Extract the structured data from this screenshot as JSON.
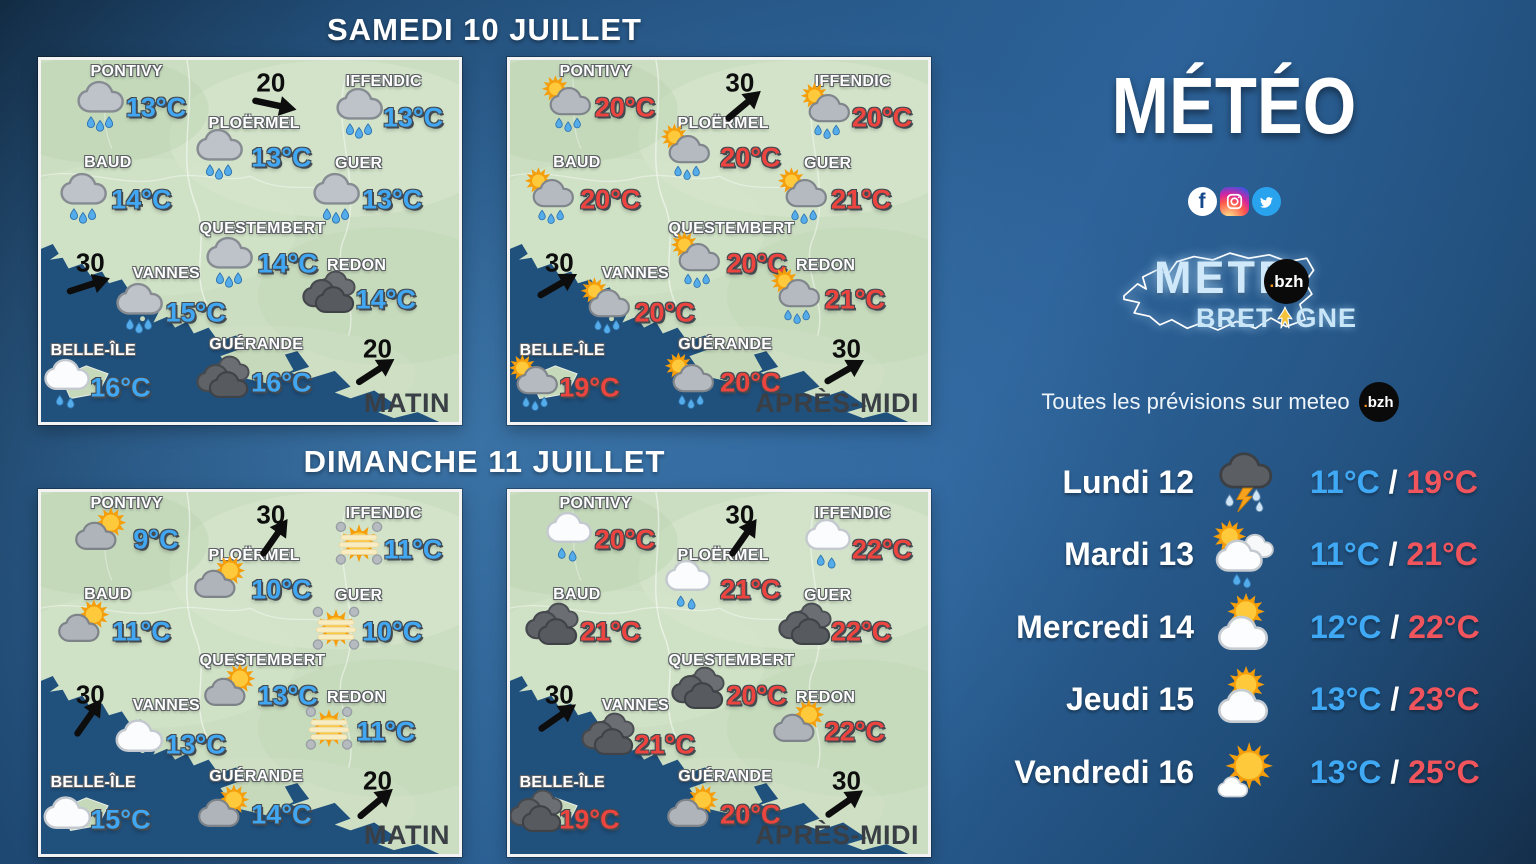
{
  "titles": {
    "saturday": "SAMEDI 10 JUILLET",
    "sunday": "DIMANCHE 11 JUILLET"
  },
  "panels": [
    {
      "name": "saturday-morning",
      "period": "MATIN",
      "temp_color": "#41A7F2",
      "winds": [
        {
          "slot": "top",
          "speed": "20",
          "angle": 12
        },
        {
          "slot": "left",
          "speed": "30",
          "angle": -18
        },
        {
          "slot": "bottom",
          "speed": "20",
          "angle": -33
        }
      ],
      "cities": [
        {
          "name": "PONTIVY",
          "icon": "rain",
          "temp": "13°C"
        },
        {
          "name": "IFFENDIC",
          "icon": "rain",
          "temp": "13°C"
        },
        {
          "name": "PLOËRMEL",
          "icon": "rain",
          "temp": "13°C"
        },
        {
          "name": "BAUD",
          "icon": "rain",
          "temp": "14°C"
        },
        {
          "name": "GUER",
          "icon": "rain",
          "temp": "13°C"
        },
        {
          "name": "QUESTEMBERT",
          "icon": "rain",
          "temp": "14°C"
        },
        {
          "name": "VANNES",
          "icon": "rain",
          "temp": "15°C"
        },
        {
          "name": "REDON",
          "icon": "darkclouds",
          "temp": "14°C"
        },
        {
          "name": "BELLE-ÎLE",
          "icon": "whitecloudrain",
          "temp": "16°C"
        },
        {
          "name": "GUÉRANDE",
          "icon": "darkclouds",
          "temp": "16°C"
        }
      ]
    },
    {
      "name": "saturday-afternoon",
      "period": "APRÈS-MIDI",
      "temp_color": "#EC4540",
      "winds": [
        {
          "slot": "top",
          "speed": "30",
          "angle": -40
        },
        {
          "slot": "left",
          "speed": "30",
          "angle": -30
        },
        {
          "slot": "bottom",
          "speed": "30",
          "angle": -30
        }
      ],
      "cities": [
        {
          "name": "PONTIVY",
          "icon": "sunrain",
          "temp": "20°C"
        },
        {
          "name": "IFFENDIC",
          "icon": "sunrain",
          "temp": "20°C"
        },
        {
          "name": "PLOËRMEL",
          "icon": "sunrain",
          "temp": "20°C"
        },
        {
          "name": "BAUD",
          "icon": "sunrain",
          "temp": "20°C"
        },
        {
          "name": "GUER",
          "icon": "sunrain",
          "temp": "21°C"
        },
        {
          "name": "QUESTEMBERT",
          "icon": "sunrain",
          "temp": "20°C"
        },
        {
          "name": "VANNES",
          "icon": "sunrain",
          "temp": "20°C"
        },
        {
          "name": "REDON",
          "icon": "sunrain",
          "temp": "21°C"
        },
        {
          "name": "BELLE-ÎLE",
          "icon": "sunrain",
          "temp": "19°C"
        },
        {
          "name": "GUÉRANDE",
          "icon": "sunrain",
          "temp": "20°C"
        }
      ]
    },
    {
      "name": "sunday-morning",
      "period": "MATIN",
      "temp_color": "#41A7F2",
      "winds": [
        {
          "slot": "top",
          "speed": "30",
          "angle": -55
        },
        {
          "slot": "left",
          "speed": "30",
          "angle": -55
        },
        {
          "slot": "bottom",
          "speed": "20",
          "angle": -40
        }
      ],
      "cities": [
        {
          "name": "PONTIVY",
          "icon": "suncloud",
          "temp": "9°C"
        },
        {
          "name": "IFFENDIC",
          "icon": "sunveil",
          "temp": "11°C"
        },
        {
          "name": "PLOËRMEL",
          "icon": "suncloud",
          "temp": "10°C"
        },
        {
          "name": "BAUD",
          "icon": "suncloud",
          "temp": "11°C"
        },
        {
          "name": "GUER",
          "icon": "sunveil",
          "temp": "10°C"
        },
        {
          "name": "QUESTEMBERT",
          "icon": "suncloud",
          "temp": "13°C"
        },
        {
          "name": "VANNES",
          "icon": "whitecloud",
          "temp": "13°C"
        },
        {
          "name": "REDON",
          "icon": "sunveil",
          "temp": "11°C"
        },
        {
          "name": "BELLE-ÎLE",
          "icon": "whitecloud",
          "temp": "15°C"
        },
        {
          "name": "GUÉRANDE",
          "icon": "suncloud",
          "temp": "14°C"
        }
      ]
    },
    {
      "name": "sunday-afternoon",
      "period": "APRÈS-MIDI",
      "temp_color": "#EC4540",
      "winds": [
        {
          "slot": "top",
          "speed": "30",
          "angle": -55
        },
        {
          "slot": "left",
          "speed": "30",
          "angle": -35
        },
        {
          "slot": "bottom",
          "speed": "30",
          "angle": -35
        }
      ],
      "cities": [
        {
          "name": "PONTIVY",
          "icon": "whitecloudrain",
          "temp": "20°C"
        },
        {
          "name": "IFFENDIC",
          "icon": "whitecloudrain",
          "temp": "22°C"
        },
        {
          "name": "PLOËRMEL",
          "icon": "whitecloudrain",
          "temp": "21°C"
        },
        {
          "name": "BAUD",
          "icon": "darkclouds",
          "temp": "21°C"
        },
        {
          "name": "GUER",
          "icon": "darkclouds",
          "temp": "22°C"
        },
        {
          "name": "QUESTEMBERT",
          "icon": "darkclouds",
          "temp": "20°C"
        },
        {
          "name": "VANNES",
          "icon": "darkclouds",
          "temp": "21°C"
        },
        {
          "name": "REDON",
          "icon": "suncloud",
          "temp": "22°C"
        },
        {
          "name": "BELLE-ÎLE",
          "icon": "darkclouds",
          "temp": "19°C"
        },
        {
          "name": "GUÉRANDE",
          "icon": "suncloud",
          "temp": "20°C"
        }
      ]
    }
  ],
  "sidebar": {
    "title": "MÉTÉO",
    "social": [
      {
        "name": "facebook-icon",
        "glyph": "f"
      },
      {
        "name": "instagram-icon"
      },
      {
        "name": "twitter-icon"
      }
    ],
    "logo": {
      "brand": "METE",
      "badge_dot": ".",
      "badge_text": "bzh",
      "bottom_left": "BRET",
      "bottom_right": "GNE"
    },
    "tagline": "Toutes les prévisions sur meteo",
    "tagline_badge_dot": ".",
    "tagline_badge_text": "bzh",
    "slash": "/",
    "temp_min_color": "#3FA9F5",
    "temp_max_color": "#F0545C",
    "forecast": [
      {
        "day": "Lundi 12",
        "icon": "storm",
        "min": "11°C",
        "max": "19°C"
      },
      {
        "day": "Mardi 13",
        "icon": "suncloudrain",
        "min": "11°C",
        "max": "21°C"
      },
      {
        "day": "Mercredi 14",
        "icon": "sunbigcloud",
        "min": "12°C",
        "max": "22°C"
      },
      {
        "day": "Jeudi 15",
        "icon": "sunbigcloud",
        "min": "13°C",
        "max": "23°C"
      },
      {
        "day": "Vendredi 16",
        "icon": "sunsmallcloud",
        "min": "13°C",
        "max": "25°C"
      }
    ]
  }
}
